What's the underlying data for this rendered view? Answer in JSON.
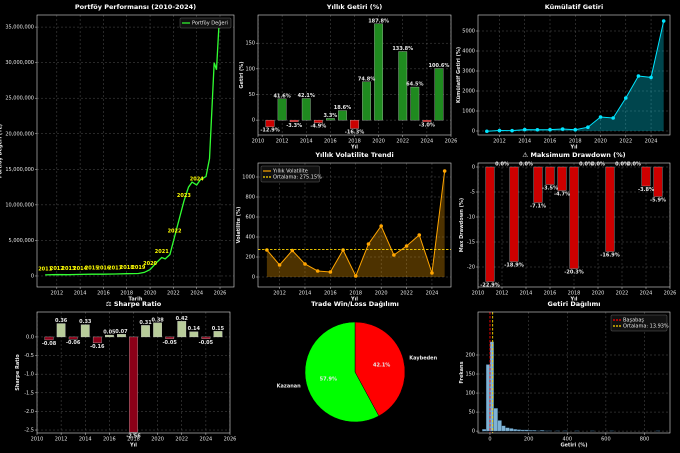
{
  "chart_data": [
    {
      "type": "line",
      "title": "Portföy Performansı (2010-2024)",
      "xlabel": "Tarih",
      "ylabel": "Portföy Değeri (TL)",
      "x": [
        2011,
        2012,
        2013,
        2014,
        2015,
        2016,
        2017,
        2018,
        2019,
        2019.5,
        2020,
        2020.5,
        2021,
        2021.3,
        2021.7,
        2022.1,
        2022.5,
        2022.9,
        2023.3,
        2023.6,
        2024.0,
        2024.3,
        2024.8,
        2025.1,
        2025.5,
        2025.7,
        2025.9
      ],
      "series": [
        {
          "name": "Portföy Değeri",
          "color": "#32ff32",
          "values": [
            150000,
            200000,
            180000,
            220000,
            250000,
            250000,
            280000,
            320000,
            350000,
            500000,
            900000,
            1800000,
            2600000,
            2400000,
            3000000,
            5500000,
            8000000,
            10500000,
            12500000,
            13200000,
            12800000,
            13500000,
            14000000,
            16500000,
            30000000,
            29000000,
            35000000
          ]
        }
      ],
      "annotations": [
        {
          "text": "2011",
          "x": 2011,
          "y": 150000
        },
        {
          "text": "2012",
          "x": 2012,
          "y": 200000
        },
        {
          "text": "2013",
          "x": 2013,
          "y": 180000
        },
        {
          "text": "2014",
          "x": 2014,
          "y": 220000
        },
        {
          "text": "2015",
          "x": 2015,
          "y": 250000
        },
        {
          "text": "2016",
          "x": 2016,
          "y": 250000
        },
        {
          "text": "2017",
          "x": 2017,
          "y": 280000
        },
        {
          "text": "2018",
          "x": 2018,
          "y": 320000
        },
        {
          "text": "2019",
          "x": 2019,
          "y": 350000
        },
        {
          "text": "2020",
          "x": 2020,
          "y": 900000
        },
        {
          "text": "2021",
          "x": 2021,
          "y": 2600000
        },
        {
          "text": "2022",
          "x": 2022.1,
          "y": 5500000
        },
        {
          "text": "2023",
          "x": 2022.9,
          "y": 10500000
        },
        {
          "text": "2024",
          "x": 2024.0,
          "y": 12800000
        }
      ],
      "annotation_color": "#ffff00",
      "xlim": [
        2010.3,
        2027.2
      ],
      "xticks": [
        2012,
        2014,
        2016,
        2018,
        2020,
        2022,
        2024,
        2026
      ],
      "ylim": [
        -1550000,
        36700000
      ],
      "yticks": [
        0,
        {
          "value": 5000000,
          "label": "5,000,000"
        },
        {
          "value": 10000000,
          "label": "10,000,000"
        },
        {
          "value": 15000000,
          "label": "15,000,000"
        },
        {
          "value": 20000000,
          "label": "20,000,000"
        },
        {
          "value": 25000000,
          "label": "25,000,000"
        },
        {
          "value": 30000000,
          "label": "30,000,000"
        },
        {
          "value": 35000000,
          "label": "35,000,000"
        }
      ],
      "grid": true,
      "legend": "upper right"
    },
    {
      "type": "bar",
      "title": "Yıllık Getiri (%)",
      "xlabel": "Yıl",
      "ylabel": "Getiri (%)",
      "x": [
        2011,
        2012,
        2013,
        2014,
        2015,
        2016,
        2017,
        2018,
        2019,
        2020,
        2022,
        2023,
        2024,
        2025
      ],
      "values": [
        -12.9,
        41.6,
        -3.3,
        42.1,
        -4.9,
        3.3,
        18.6,
        -16.3,
        74.8,
        187.8,
        133.8,
        64.5,
        -3.0,
        100.6
      ],
      "value_labels": [
        "-12.9%",
        "41.6%",
        "-3.3%",
        "42.1%",
        "-4.9%",
        "3.3%",
        "18.6%",
        "-16.3%",
        "74.8%",
        "187.8%",
        "133.8%",
        "64.5%",
        "-3.0%",
        "100.6%"
      ],
      "positive_color": "#1f8a1f",
      "negative_color": "#cc0000",
      "xlim": [
        2010,
        2026
      ],
      "xticks": [
        2010,
        2012,
        2014,
        2016,
        2018,
        2020,
        2022,
        2024,
        2026
      ],
      "ylim": [
        -29,
        205
      ],
      "yticks": [
        0,
        50,
        100,
        150
      ],
      "grid": true
    },
    {
      "type": "line",
      "title": "Kümülatif Getiri",
      "xlabel": "Yıl",
      "ylabel": "Kümülatif Getiri (%)",
      "x": [
        2011,
        2012,
        2013,
        2014,
        2015,
        2016,
        2017,
        2018,
        2019,
        2020,
        2021,
        2022,
        2023,
        2024,
        2025
      ],
      "series": [
        {
          "color": "#00e5ff",
          "values": [
            -13,
            23,
            19,
            70,
            61,
            67,
            98,
            65,
            189,
            700,
            650,
            1650,
            2750,
            2680,
            5500
          ]
        }
      ],
      "fill": true,
      "markers": true,
      "xlim": [
        2010.3,
        2025.5
      ],
      "xticks": [
        2012,
        2014,
        2016,
        2018,
        2020,
        2022,
        2024
      ],
      "ylim": [
        -200,
        5800
      ],
      "yticks": [
        0,
        1000,
        2000,
        3000,
        4000,
        5000
      ],
      "grid": true
    },
    {
      "type": "line",
      "title": "Yıllık Volatilite Trendi",
      "xlabel": "Yıl",
      "ylabel": "Volatilite (%)",
      "x": [
        2011,
        2012,
        2013,
        2014,
        2015,
        2016,
        2017,
        2018,
        2019,
        2020,
        2021,
        2022,
        2023,
        2024,
        2025
      ],
      "series": [
        {
          "name": "Yıllık Volatilite",
          "color": "#ffa500",
          "values": [
            270,
            120,
            265,
            130,
            60,
            50,
            270,
            10,
            330,
            510,
            220,
            310,
            420,
            40,
            1060
          ]
        }
      ],
      "reference_lines": [
        {
          "value": 275.15,
          "label": "Ortalama: 275.15%",
          "color": "#ffd700"
        }
      ],
      "fill": true,
      "markers": true,
      "xlim": [
        2010.3,
        2025.5
      ],
      "xticks": [
        2012,
        2014,
        2016,
        2018,
        2020,
        2022,
        2024
      ],
      "ylim": [
        -100,
        1140
      ],
      "yticks": [
        0,
        200,
        400,
        600,
        800,
        1000
      ],
      "grid": true,
      "legend": "upper left"
    },
    {
      "type": "bar",
      "title": "⚠ Maksimum Drawdown (%)",
      "xlabel": "Yıl",
      "ylabel": "Max Drawdown (%)",
      "x": [
        2011,
        2012,
        2013,
        2014,
        2015,
        2016,
        2017,
        2018,
        2019,
        2020,
        2021,
        2022,
        2023,
        2024,
        2025
      ],
      "values": [
        -22.9,
        0.0,
        -18.9,
        0.0,
        -7.1,
        -3.5,
        -4.7,
        -20.3,
        0.0,
        0.0,
        -16.9,
        0.0,
        0.0,
        -3.8,
        -5.9
      ],
      "value_labels": [
        "-22.9%",
        "0.0%",
        "-18.9%",
        "0.0%",
        "-7.1%",
        "-3.5%",
        "-4.7%",
        "-20.3%",
        "0.0%",
        "0.0%",
        "-16.9%",
        "0.0%",
        "0.0%",
        "-3.8%",
        "-5.9%"
      ],
      "color": "#cc0000",
      "xlim": [
        2010,
        2026
      ],
      "xticks": [
        2010,
        2012,
        2014,
        2016,
        2018,
        2020,
        2022,
        2024,
        2026
      ],
      "ylim": [
        -24,
        0.8
      ],
      "yticks": [
        -20,
        -15,
        -10,
        -5,
        0
      ],
      "grid": true
    },
    {
      "type": "bar",
      "title": "⚖ Sharpe Ratio",
      "xlabel": "Yıl",
      "ylabel": "Sharpe Ratio",
      "x": [
        2011,
        2012,
        2013,
        2014,
        2015,
        2016,
        2017,
        2018,
        2019,
        2020,
        2021,
        2022,
        2023,
        2024,
        2025
      ],
      "values": [
        -0.08,
        0.36,
        -0.06,
        0.33,
        -0.16,
        0.05,
        0.07,
        -2.56,
        0.31,
        0.38,
        -0.05,
        0.42,
        0.14,
        -0.05,
        0.15
      ],
      "positive_color": "#b8cc9a",
      "negative_color": "#8b0018",
      "xlim": [
        2010,
        2026
      ],
      "xticks": [
        2010,
        2012,
        2014,
        2016,
        2018,
        2020,
        2022,
        2024,
        2026
      ],
      "ylim": [
        -2.58,
        0.67
      ],
      "yticks": [
        {
          "value": 0,
          "label": "0.0"
        },
        -0.5,
        {
          "value": -1,
          "label": "-1.0"
        },
        -1.5,
        {
          "value": -2,
          "label": "-2.0"
        },
        -2.5
      ],
      "grid": true
    },
    {
      "type": "pie",
      "title": "Trade Win/Loss Dağılımı",
      "labels": [
        "Kaybeden",
        "Kazanan"
      ],
      "values": [
        42.1,
        57.9
      ],
      "value_labels": [
        "42.1%",
        "57.9%"
      ],
      "colors": [
        "#ff0000",
        "#00ff00"
      ]
    },
    {
      "type": "histogram",
      "title": "Getiri Dağılımı",
      "xlabel": "Getiri (%)",
      "ylabel": "Frekans",
      "bins": [
        -40,
        -20,
        0,
        20,
        40,
        60,
        80,
        100,
        120,
        140,
        160,
        180,
        200,
        220,
        240,
        260,
        280,
        300,
        320,
        340,
        360,
        380,
        400,
        420,
        440,
        460,
        480,
        500,
        520,
        540,
        560,
        580,
        600,
        620,
        640,
        660,
        680,
        700,
        720,
        740,
        760,
        780,
        800,
        820,
        840,
        860,
        880
      ],
      "counts": [
        5,
        175,
        235,
        60,
        28,
        14,
        9,
        7,
        5,
        4,
        3,
        3,
        2,
        2,
        1,
        2,
        1,
        1,
        0,
        1,
        0,
        1,
        0,
        0,
        1,
        0,
        0,
        0,
        1,
        0,
        0,
        0,
        0,
        1,
        0,
        0,
        0,
        0,
        0,
        0,
        0,
        0,
        0,
        0,
        0,
        1
      ],
      "color": "#7fb3d5",
      "reference_lines": [
        {
          "value": 0,
          "label": "Başabaş",
          "color": "#ff0000"
        },
        {
          "value": 13.93,
          "label": "Ortalama: 13.93%",
          "color": "#ffd700"
        }
      ],
      "xlim": [
        -62,
        932
      ],
      "xticks": [
        0,
        200,
        400,
        600,
        800
      ],
      "ylim": [
        -5,
        313
      ],
      "yticks": [
        0,
        50,
        100,
        150,
        200
      ],
      "grid": true,
      "legend": "upper right"
    }
  ]
}
